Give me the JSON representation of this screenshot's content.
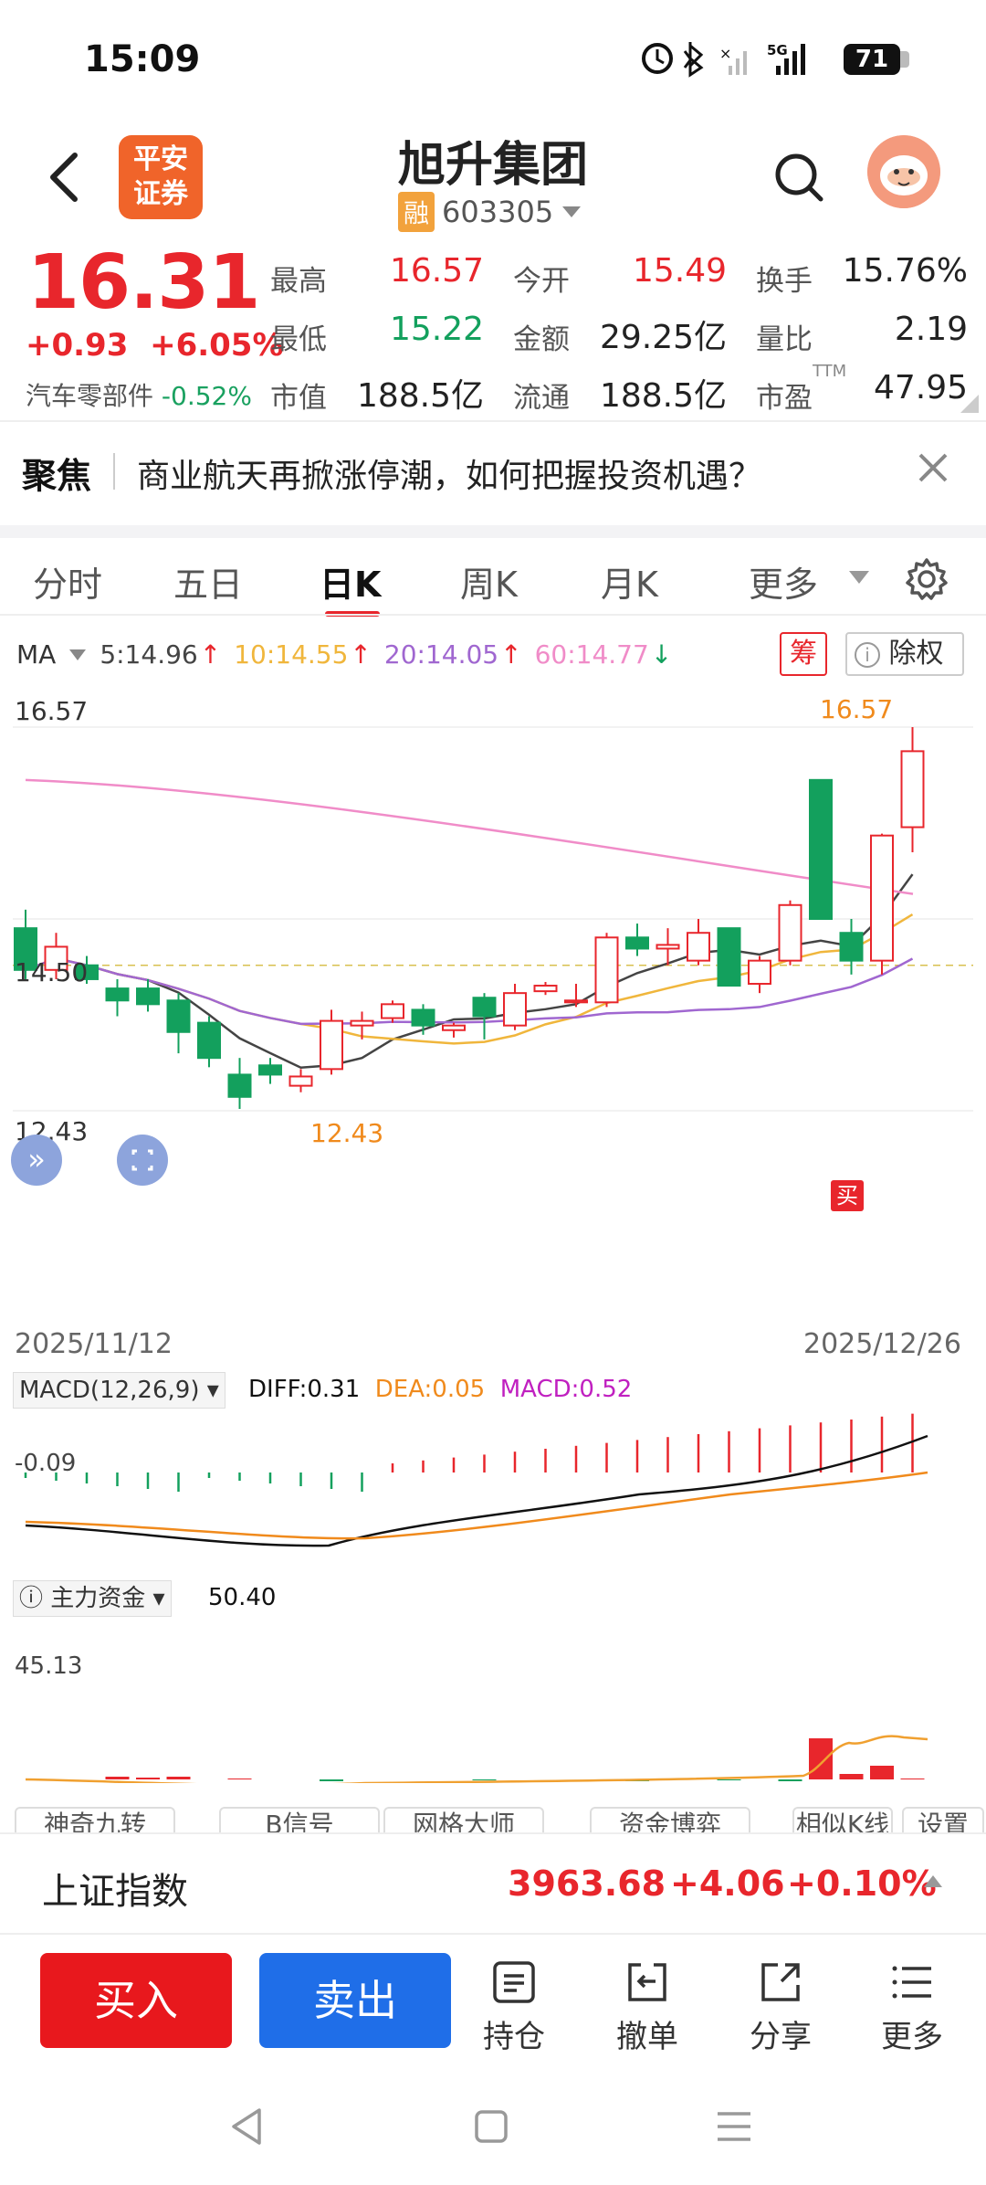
{
  "status": {
    "time": "15:09",
    "battery": "71",
    "network": "5G"
  },
  "header": {
    "broker_logo_l1": "平安",
    "broker_logo_l2": "证券",
    "stock_name": "旭升集团",
    "rong_badge": "融",
    "stock_code": "603305"
  },
  "quote": {
    "price": "16.31",
    "change": "+0.93",
    "change_pct": "+6.05%",
    "sector": "汽车零部件",
    "sector_change": "-0.52%",
    "high_label": "最高",
    "high": "16.57",
    "open_label": "今开",
    "open": "15.49",
    "turnover_label": "换手",
    "turnover": "15.76%",
    "low_label": "最低",
    "low": "15.22",
    "amount_label": "金额",
    "amount": "29.25亿",
    "volratio_label": "量比",
    "volratio": "2.19",
    "mcap_label": "市值",
    "mcap": "188.5亿",
    "float_label": "流通",
    "float": "188.5亿",
    "pe_label": "市盈",
    "pe_sup": "TTM",
    "pe": "47.95"
  },
  "focus": {
    "label": "聚焦",
    "text": "商业航天再掀涨停潮，如何把握投资机遇？"
  },
  "tabs": {
    "t1": "分时",
    "t2": "五日",
    "t3": "日K",
    "t4": "周K",
    "t5": "月K",
    "t6": "更多"
  },
  "ma": {
    "label": "MA",
    "ma5": "5:14.96",
    "ma10": "10:14.55",
    "ma20": "20:14.05",
    "ma60": "60:14.77",
    "chip": "筹",
    "exright": "除权"
  },
  "kline": {
    "max_label": "16.57",
    "mid_label": "14.50",
    "min_label": "12.43",
    "hi_mark": "16.57",
    "lo_mark": "12.43",
    "date_start": "2025/11/12",
    "date_end": "2025/12/26",
    "buy_mark": "买"
  },
  "macd": {
    "title": "MACD(12,26,9)",
    "diff": "DIFF:0.31",
    "dea": "DEA:0.05",
    "macd": "MACD:0.52",
    "axis": "-0.09"
  },
  "fund": {
    "title": "主力资金",
    "value": "50.40",
    "axis": "45.13"
  },
  "pills": [
    "神奇九转",
    "B信号",
    "网格大师",
    "资金博弈",
    "相似K线",
    "设置"
  ],
  "index": {
    "name": "上证指数",
    "value": "3963.68",
    "change": "+4.06",
    "pct": "+0.10%"
  },
  "actions": {
    "buy": "买入",
    "sell": "卖出",
    "hold": "持仓",
    "cancel": "撤单",
    "share": "分享",
    "more": "更多"
  },
  "colors": {
    "up": "#e8262c",
    "down": "#13a05d",
    "ma5": "#444444",
    "ma10": "#f0b63c",
    "ma20": "#a067d0",
    "ma60": "#f08cc8"
  },
  "chart_data": {
    "type": "candlestick",
    "dates": [
      "2025/11/12",
      "2025/12/26"
    ],
    "candles": [
      {
        "o": 14.4,
        "c": 13.95,
        "h": 14.6,
        "l": 13.85
      },
      {
        "o": 13.95,
        "c": 14.2,
        "h": 14.35,
        "l": 13.85
      },
      {
        "o": 14.0,
        "c": 13.85,
        "h": 14.1,
        "l": 13.8
      },
      {
        "o": 13.75,
        "c": 13.62,
        "h": 13.85,
        "l": 13.45
      },
      {
        "o": 13.75,
        "c": 13.58,
        "h": 13.85,
        "l": 13.5
      },
      {
        "o": 13.62,
        "c": 13.28,
        "h": 13.7,
        "l": 13.05
      },
      {
        "o": 13.38,
        "c": 13.0,
        "h": 13.45,
        "l": 12.9
      },
      {
        "o": 12.82,
        "c": 12.58,
        "h": 13.0,
        "l": 12.45
      },
      {
        "o": 12.92,
        "c": 12.82,
        "h": 13.0,
        "l": 12.72
      },
      {
        "o": 12.7,
        "c": 12.8,
        "h": 12.88,
        "l": 12.63
      },
      {
        "o": 12.88,
        "c": 13.4,
        "h": 13.52,
        "l": 12.82
      },
      {
        "o": 13.35,
        "c": 13.4,
        "h": 13.5,
        "l": 13.2
      },
      {
        "o": 13.43,
        "c": 13.58,
        "h": 13.62,
        "l": 13.38
      },
      {
        "o": 13.52,
        "c": 13.35,
        "h": 13.58,
        "l": 13.25
      },
      {
        "o": 13.3,
        "c": 13.35,
        "h": 13.38,
        "l": 13.22
      },
      {
        "o": 13.65,
        "c": 13.45,
        "h": 13.7,
        "l": 13.2
      },
      {
        "o": 13.35,
        "c": 13.7,
        "h": 13.8,
        "l": 13.3
      },
      {
        "o": 13.72,
        "c": 13.78,
        "h": 13.82,
        "l": 13.68
      },
      {
        "o": 13.6,
        "c": 13.62,
        "h": 13.8,
        "l": 13.55
      },
      {
        "o": 13.6,
        "c": 14.3,
        "h": 14.35,
        "l": 13.55
      },
      {
        "o": 14.3,
        "c": 14.18,
        "h": 14.45,
        "l": 14.1
      },
      {
        "o": 14.18,
        "c": 14.22,
        "h": 14.4,
        "l": 14.0
      },
      {
        "o": 14.05,
        "c": 14.35,
        "h": 14.5,
        "l": 14.0
      },
      {
        "o": 14.4,
        "c": 13.78,
        "h": 14.4,
        "l": 13.78
      },
      {
        "o": 13.8,
        "c": 14.05,
        "h": 14.1,
        "l": 13.7
      },
      {
        "o": 14.05,
        "c": 14.65,
        "h": 14.7,
        "l": 14.0
      },
      {
        "o": 16.0,
        "c": 14.5,
        "h": 16.0,
        "l": 14.5
      },
      {
        "o": 14.35,
        "c": 14.05,
        "h": 14.5,
        "l": 13.9
      },
      {
        "o": 14.05,
        "c": 15.4,
        "h": 15.42,
        "l": 13.9
      },
      {
        "o": 15.49,
        "c": 16.31,
        "h": 16.57,
        "l": 15.22
      }
    ]
  }
}
